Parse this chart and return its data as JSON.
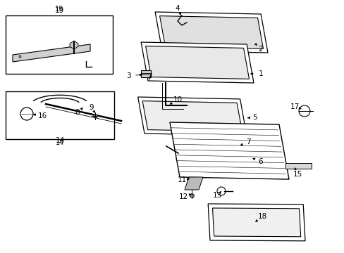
{
  "bg_color": "#ffffff",
  "line_color": "#000000",
  "fig_width": 4.89,
  "fig_height": 3.6,
  "dpi": 100,
  "parts": {
    "glass1_outer": {
      "x": [
        2.05,
        3.55,
        3.8,
        2.3,
        2.05
      ],
      "y": [
        2.3,
        2.3,
        2.9,
        2.9,
        2.3
      ]
    },
    "glass2_outer": {
      "x": [
        2.15,
        3.65,
        3.88,
        2.38,
        2.15
      ],
      "y": [
        2.5,
        2.5,
        3.15,
        3.15,
        2.5
      ]
    },
    "glass_mid": {
      "x": [
        2.0,
        3.5,
        3.72,
        2.22,
        2.0
      ],
      "y": [
        1.65,
        1.65,
        2.2,
        2.2,
        1.65
      ]
    }
  }
}
